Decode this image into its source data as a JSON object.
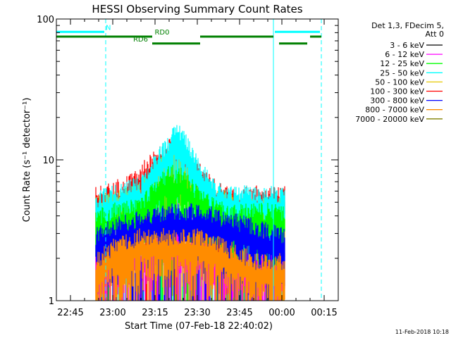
{
  "chart_data": {
    "type": "line",
    "title": "HESSI Observing Summary Count Rates",
    "xlabel": "Start Time (07-Feb-18 22:40:02)",
    "ylabel": "Count Rate (s⁻¹ detector⁻¹)",
    "x_unit": "minutes after 07-Feb-18 22:40:02",
    "x_range": [
      0,
      100
    ],
    "ylim": [
      1,
      100
    ],
    "y_scale": "log",
    "grid": false,
    "legend_position": "right",
    "legend_header": [
      "Det 1,3, FDecim 5,",
      "Att 0"
    ],
    "x_ticks": [
      {
        "x": 5,
        "label": "22:45"
      },
      {
        "x": 20,
        "label": "23:00"
      },
      {
        "x": 35,
        "label": "23:15"
      },
      {
        "x": 50,
        "label": "23:30"
      },
      {
        "x": 65,
        "label": "23:45"
      },
      {
        "x": 80,
        "label": "00:00"
      },
      {
        "x": 95,
        "label": "00:15"
      }
    ],
    "y_ticks": [
      {
        "y": 1,
        "label": "1"
      },
      {
        "y": 10,
        "label": "10"
      },
      {
        "y": 100,
        "label": "100"
      }
    ],
    "vertical_lines": [
      {
        "x": 0,
        "style": "solid",
        "color": "#00ffff"
      },
      {
        "x": 17.5,
        "style": "dashed",
        "color": "#00ffff"
      },
      {
        "x": 77,
        "style": "solid",
        "color": "#00ffff"
      },
      {
        "x": 94,
        "style": "dashed",
        "color": "#00ffff"
      }
    ],
    "flag_bars": [
      {
        "x0": 0,
        "x1": 17,
        "y": 81,
        "color": "#00ffff",
        "label": "N"
      },
      {
        "x0": 77.5,
        "x1": 93.5,
        "y": 81,
        "color": "#00ffff",
        "label": ""
      },
      {
        "x0": 0,
        "x1": 34,
        "y": 75,
        "color": "#008000",
        "label": "RD0"
      },
      {
        "x0": 51,
        "x1": 77,
        "y": 75,
        "color": "#008000",
        "label": ""
      },
      {
        "x0": 90,
        "x1": 94,
        "y": 75,
        "color": "#008000",
        "label": ""
      },
      {
        "x0": 34,
        "x1": 51,
        "y": 67,
        "color": "#008000",
        "label": "RD6"
      },
      {
        "x0": 79,
        "x1": 89,
        "y": 67,
        "color": "#008000",
        "label": ""
      }
    ],
    "data_x_range": [
      14,
      81
    ],
    "series": [
      {
        "name": "3 - 6 keV",
        "color": "#000000",
        "values": []
      },
      {
        "name": "6 - 12 keV",
        "color": "#ff00ff",
        "envelope": {
          "x": [
            14,
            20,
            30,
            35,
            40,
            45,
            50,
            55,
            60,
            70,
            81
          ],
          "y": [
            2.0,
            2.2,
            2.5,
            3.0,
            3.2,
            3.0,
            2.5,
            2.2,
            2.0,
            2.0,
            2.0
          ]
        }
      },
      {
        "name": "12 - 25 keV",
        "color": "#00ff00",
        "envelope": {
          "x": [
            14,
            20,
            30,
            35,
            40,
            45,
            50,
            55,
            60,
            70,
            81
          ],
          "y": [
            4.0,
            4.5,
            5.0,
            7.0,
            8.5,
            8.0,
            6.0,
            5.0,
            4.5,
            4.5,
            4.5
          ]
        }
      },
      {
        "name": "25 - 50 keV",
        "color": "#00ffff",
        "envelope": {
          "x": [
            14,
            20,
            30,
            35,
            40,
            43,
            45,
            50,
            55,
            60,
            70,
            81
          ],
          "y": [
            5.5,
            6.0,
            7.0,
            10.0,
            14.0,
            17.0,
            15.0,
            10.0,
            7.0,
            6.0,
            6.0,
            6.0
          ]
        }
      },
      {
        "name": "50 - 100 keV",
        "color": "#e6c800",
        "envelope": {
          "x": [
            14,
            20,
            30,
            35,
            40,
            45,
            50,
            55,
            60,
            70,
            81
          ],
          "y": [
            5.0,
            5.5,
            6.5,
            8.5,
            11.0,
            10.0,
            7.5,
            6.0,
            5.5,
            5.0,
            5.0
          ]
        }
      },
      {
        "name": "100 - 300 keV",
        "color": "#ff0000",
        "envelope": {
          "x": [
            14,
            20,
            25,
            30,
            35,
            40,
            45,
            50,
            55,
            60,
            70,
            81
          ],
          "y": [
            6.0,
            6.5,
            7.0,
            8.5,
            11.0,
            13.0,
            12.0,
            9.0,
            7.0,
            6.0,
            6.0,
            6.0
          ]
        }
      },
      {
        "name": "300 - 800 keV",
        "color": "#0000ff",
        "envelope": {
          "x": [
            14,
            20,
            30,
            40,
            50,
            60,
            70,
            81
          ],
          "y": [
            3.0,
            3.5,
            4.0,
            4.5,
            4.5,
            4.0,
            3.5,
            3.0
          ]
        }
      },
      {
        "name": "800 - 7000 keV",
        "color": "#ff8c00",
        "envelope": {
          "x": [
            14,
            20,
            30,
            40,
            50,
            60,
            70,
            81
          ],
          "y": [
            2.0,
            2.5,
            3.0,
            3.0,
            3.0,
            2.5,
            2.0,
            2.0
          ]
        }
      },
      {
        "name": "7000 - 20000 keV",
        "color": "#808000",
        "values": []
      }
    ]
  },
  "footer_timestamp": "11-Feb-2018 10:18"
}
